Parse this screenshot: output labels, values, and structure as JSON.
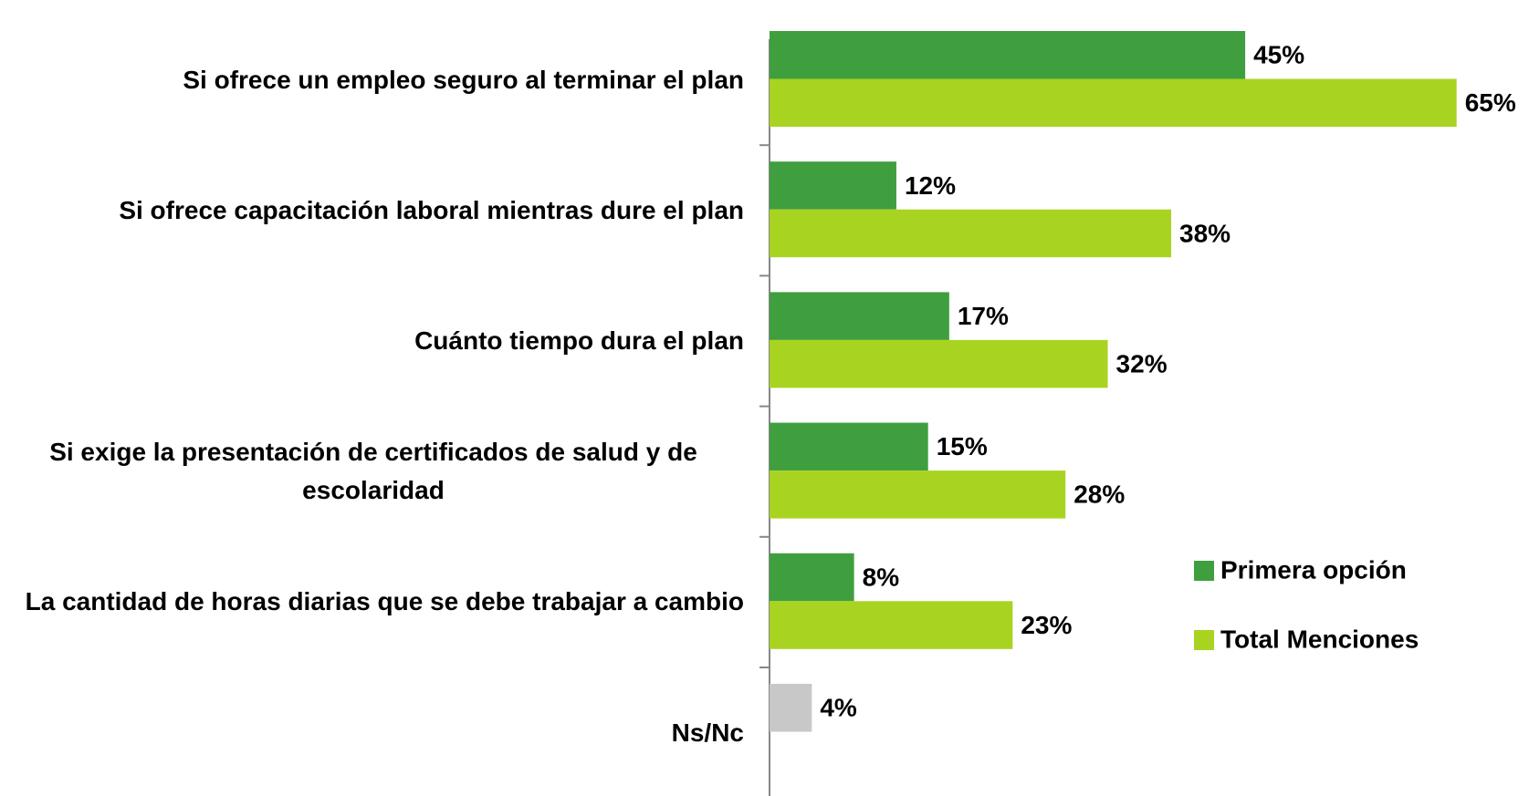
{
  "chart_data": {
    "type": "bar",
    "orientation": "horizontal",
    "categories": [
      "Si ofrece un empleo seguro al terminar el plan",
      "Si ofrece capacitación laboral mientras dure el plan",
      "Cuánto tiempo dura el plan",
      "Si exige la presentación de certificados de salud y de escolaridad",
      "La cantidad de horas diarias que se debe trabajar a cambio",
      "Ns/Nc"
    ],
    "series": [
      {
        "name": "Primera opción",
        "color": "#3f9f3f",
        "point_colors": [
          "#3f9f3f",
          "#3f9f3f",
          "#3f9f3f",
          "#3f9f3f",
          "#3f9f3f",
          "#c8c8c8"
        ],
        "values": [
          45,
          12,
          17,
          15,
          8,
          4
        ],
        "value_labels": [
          "45%",
          "12%",
          "17%",
          "15%",
          "8%",
          "4%"
        ]
      },
      {
        "name": "Total Menciones",
        "color": "#a8d421",
        "values": [
          65,
          38,
          32,
          28,
          23,
          null
        ],
        "value_labels": [
          "65%",
          "38%",
          "32%",
          "28%",
          "23%",
          null
        ]
      }
    ]
  }
}
